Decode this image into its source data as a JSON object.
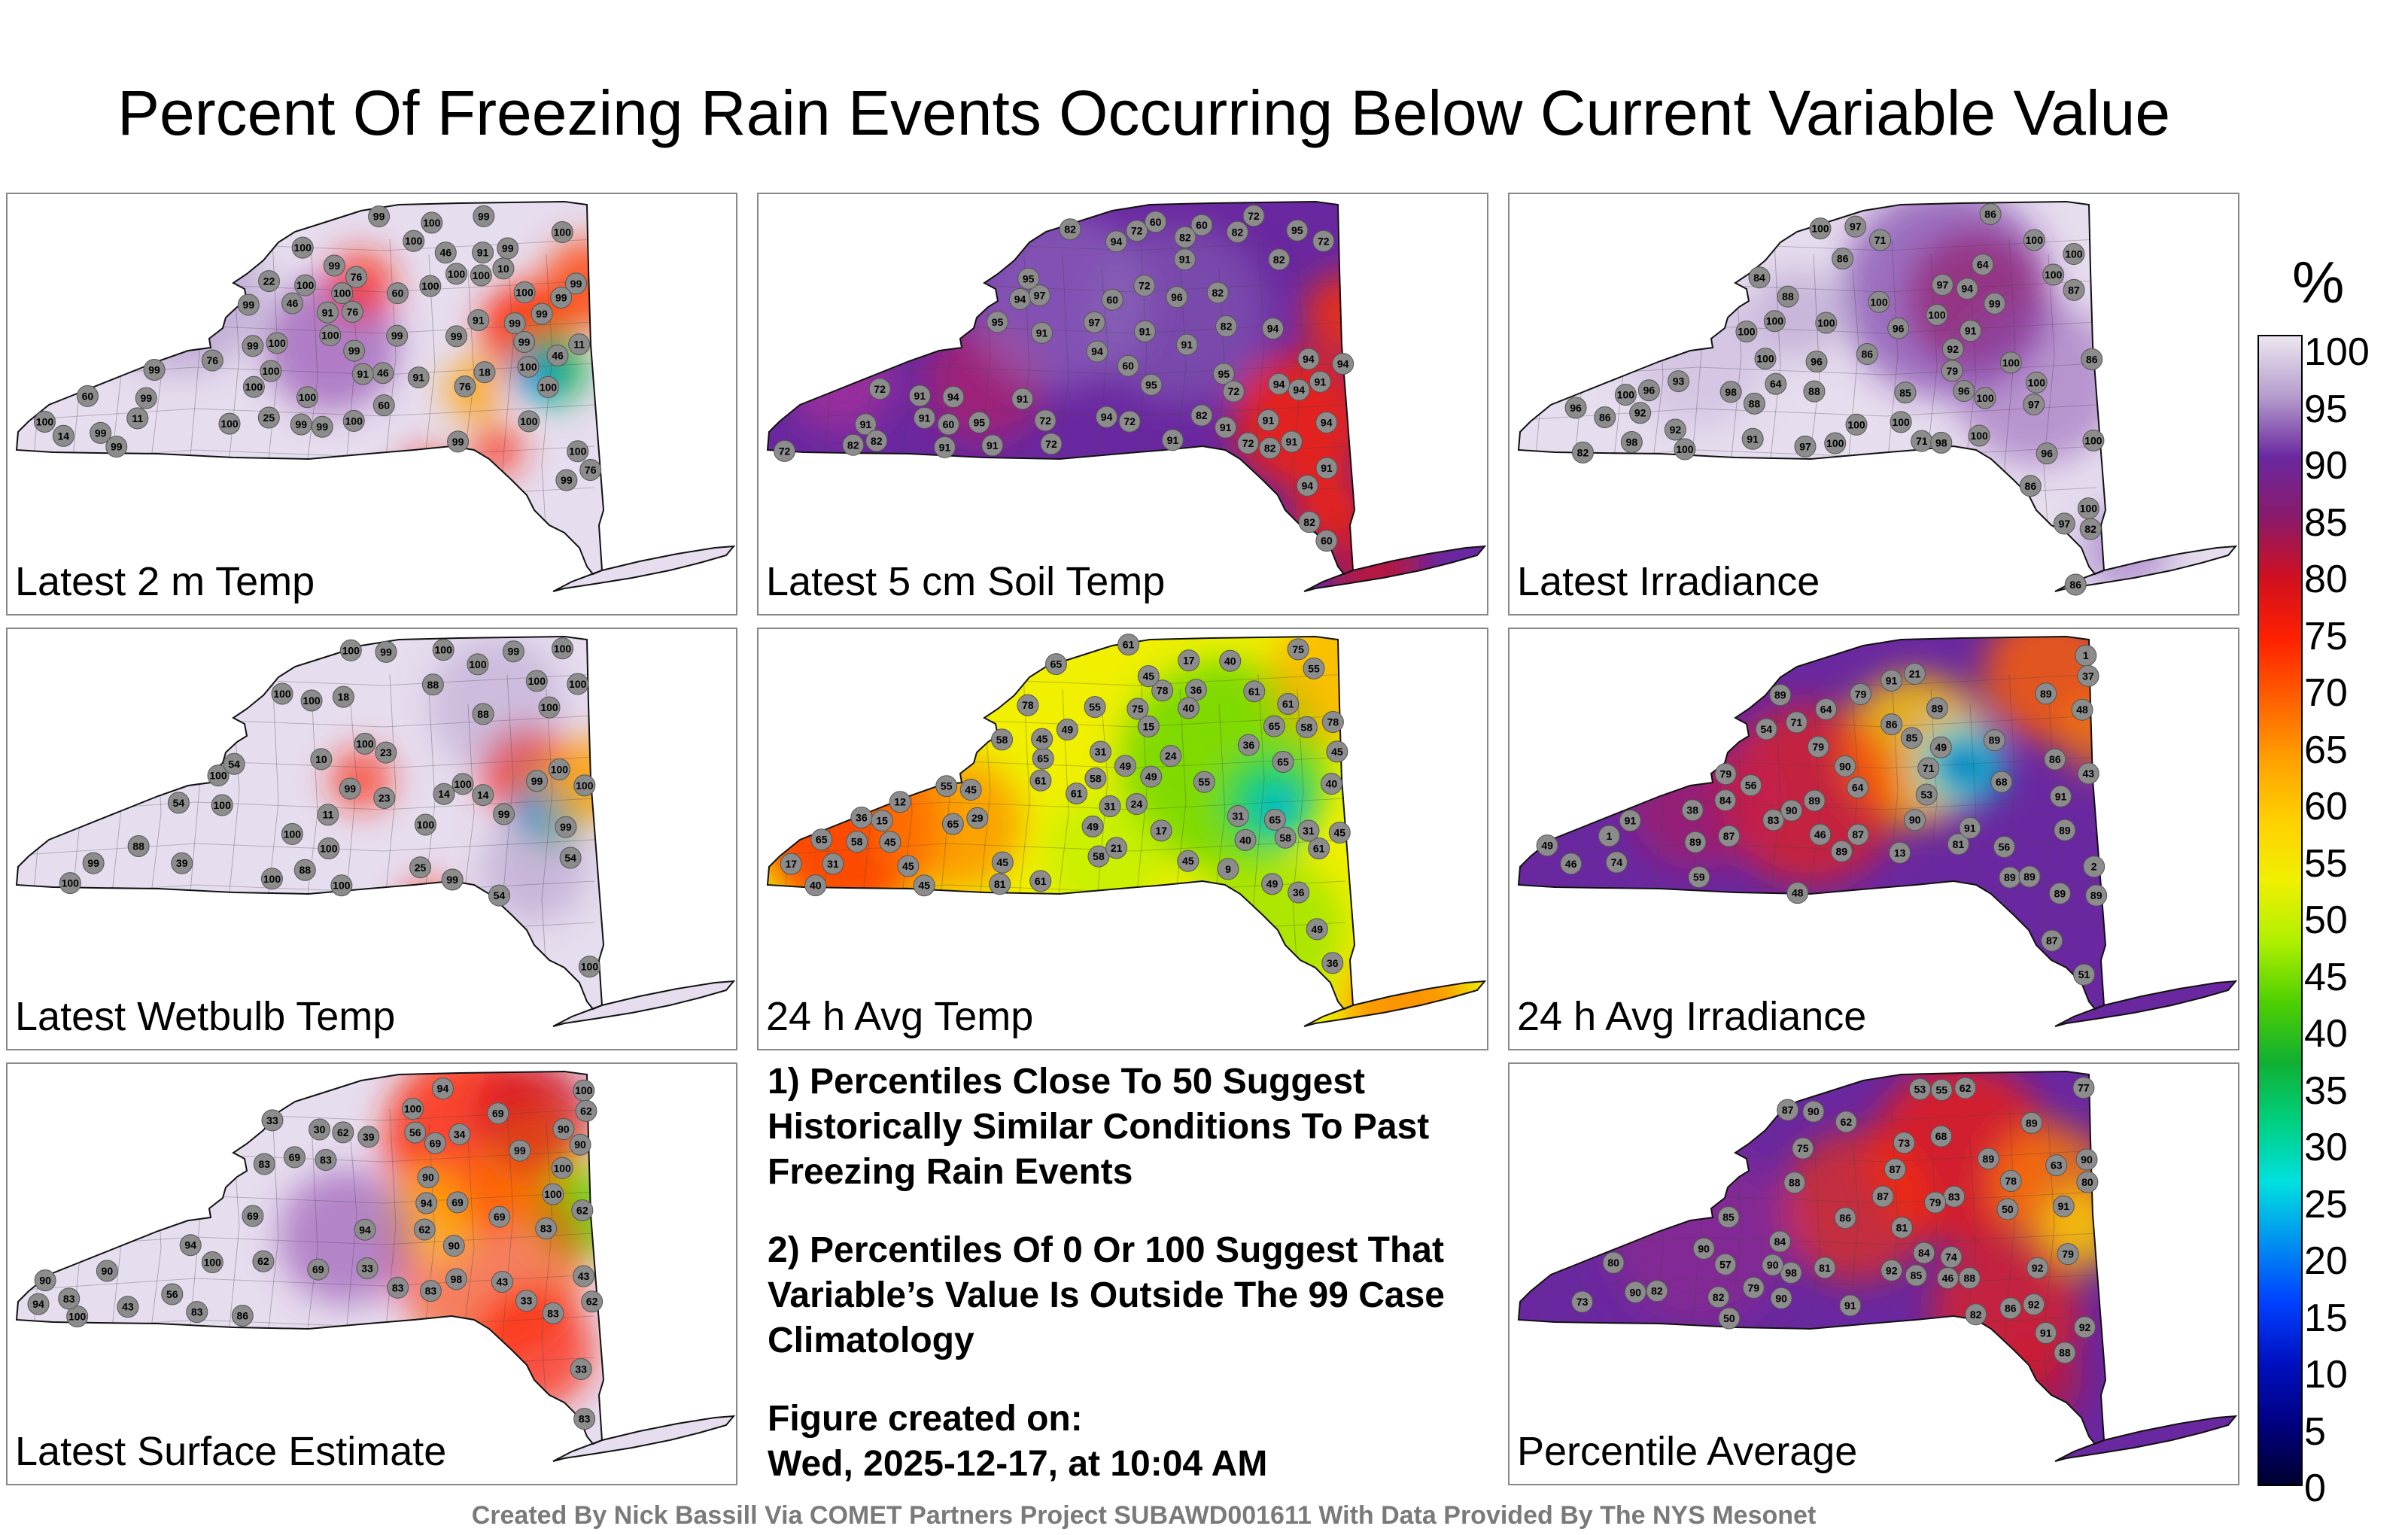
{
  "title": "Percent Of Freezing Rain Events Occurring Below Current Variable Value",
  "panels": [
    {
      "label": "Latest 2 m Temp",
      "scheme": "temp2m",
      "values": [
        99,
        100,
        99,
        76,
        99,
        22,
        46,
        100,
        100,
        99,
        91,
        99,
        11,
        76,
        25,
        18,
        100,
        100,
        100,
        100,
        91,
        46,
        60,
        14,
        46,
        100,
        99,
        100,
        100,
        100,
        99,
        99,
        100,
        76,
        100,
        99,
        10,
        91,
        100,
        100,
        99,
        99,
        99,
        46,
        11,
        100,
        100,
        99,
        99,
        100,
        99,
        91,
        76,
        60,
        99,
        100,
        60,
        99,
        91,
        100,
        99,
        99,
        76,
        99,
        99,
        99,
        100,
        100
      ]
    },
    {
      "label": "Latest 5 cm Soil Temp",
      "scheme": "soil",
      "values": [
        82,
        91,
        91,
        94,
        72,
        94,
        97,
        72,
        91,
        94,
        82,
        97,
        94,
        72,
        94,
        91,
        95,
        72,
        82,
        94,
        95,
        96,
        60,
        60,
        91,
        72,
        82,
        91,
        94,
        72,
        60,
        91,
        72,
        82,
        95,
        91,
        94,
        82,
        91,
        91,
        94,
        91,
        91,
        60,
        72,
        82,
        82,
        82,
        60,
        60,
        72,
        95,
        94,
        82,
        72,
        91,
        91,
        95,
        91,
        95,
        82,
        91,
        72,
        94,
        94
      ]
    },
    {
      "label": "Latest Irradiance",
      "scheme": "irr",
      "values": [
        82,
        86,
        86,
        71,
        82,
        79,
        100,
        86,
        96,
        64,
        86,
        92,
        100,
        71,
        64,
        97,
        93,
        100,
        100,
        100,
        91,
        100,
        100,
        86,
        98,
        97,
        92,
        88,
        86,
        88,
        86,
        100,
        87,
        84,
        100,
        96,
        94,
        97,
        100,
        100,
        100,
        100,
        96,
        91,
        85,
        100,
        97,
        98,
        88,
        98,
        100,
        96,
        96,
        100,
        92,
        97,
        100,
        100,
        100,
        99,
        96,
        100,
        100
      ]
    },
    {
      "label": "Latest Wetbulb Temp",
      "scheme": "wetbulb",
      "values": [
        100,
        100,
        100,
        88,
        100,
        54,
        100,
        99,
        10,
        23,
        99,
        54,
        18,
        100,
        54,
        25,
        99,
        39,
        100,
        100,
        100,
        14,
        14,
        23,
        88,
        100,
        99,
        100,
        100,
        100,
        99,
        11,
        100,
        100,
        100,
        99,
        88,
        54,
        88,
        99,
        100,
        100,
        100,
        100,
        100,
        100,
        99
      ]
    },
    {
      "label": "24 h Avg Temp",
      "scheme": "avgtemp",
      "values": [
        61,
        58,
        58,
        65,
        49,
        31,
        55,
        75,
        61,
        36,
        40,
        45,
        49,
        17,
        31,
        49,
        61,
        24,
        29,
        17,
        45,
        81,
        78,
        75,
        61,
        24,
        36,
        40,
        78,
        65,
        58,
        55,
        45,
        45,
        36,
        9,
        31,
        21,
        78,
        65,
        49,
        55,
        65,
        49,
        36,
        45,
        40,
        12,
        61,
        65,
        49,
        45,
        31,
        40,
        15,
        58,
        61,
        65,
        55,
        45,
        36,
        17,
        45,
        31,
        15,
        45,
        58,
        45,
        40,
        65,
        58,
        61
      ]
    },
    {
      "label": "24 h Avg Irradiance",
      "scheme": "avgirr",
      "values": [
        48,
        64,
        79,
        79,
        46,
        53,
        56,
        21,
        48,
        43,
        13,
        38,
        46,
        2,
        86,
        1,
        1,
        37,
        54,
        64,
        49,
        68,
        71,
        56,
        59,
        71,
        89,
        81,
        83,
        51,
        49,
        74,
        89,
        79,
        85,
        89,
        87,
        89,
        89,
        84,
        87,
        89,
        89,
        86,
        90,
        89,
        87,
        89,
        91,
        89,
        91,
        89,
        91,
        90,
        91,
        90,
        89
      ]
    },
    {
      "label": "Latest Surface Estimate",
      "scheme": "surface",
      "values": [
        83,
        69,
        43,
        94,
        83,
        62,
        39,
        56,
        62,
        33,
        86,
        30,
        69,
        34,
        43,
        33,
        56,
        33,
        99,
        83,
        90,
        94,
        83,
        33,
        100,
        100,
        94,
        90,
        69,
        83,
        62,
        100,
        90,
        83,
        62,
        43,
        100,
        90,
        83,
        94,
        69,
        62,
        100,
        100,
        90,
        62,
        83,
        69,
        94,
        83,
        69,
        69,
        98,
        90
      ]
    },
    {
      "label": "Percentile Average",
      "scheme": "avg",
      "values": [
        79,
        83,
        84,
        62,
        82,
        75,
        68,
        79,
        62,
        88,
        87,
        73,
        80,
        53,
        46,
        63,
        87,
        91,
        89,
        90,
        81,
        98,
        50,
        55,
        92,
        90,
        84,
        85,
        86,
        87,
        57,
        91,
        92,
        89,
        88,
        85,
        86,
        50,
        90,
        91,
        92,
        81,
        77,
        80,
        74,
        90,
        78,
        88,
        82,
        82,
        73,
        79,
        90,
        92,
        90
      ]
    }
  ],
  "notes": {
    "note1": "1) Percentiles Close To 50 Suggest Historically Similar Conditions To Past Freezing Rain Events",
    "note2": "2) Percentiles Of 0 Or 100 Suggest That Variable’s Value Is Outside The 99 Case Climatology",
    "created_label": "Figure created on:",
    "created_date": "Wed, 2025-12-17, at 10:04 AM"
  },
  "credit": "Created By Nick Bassill Via COMET Partners Project SUBAWD001611 With Data Provided By The NYS Mesonet",
  "colorbar": {
    "title": "%",
    "ticks": [
      "100",
      "95",
      "90",
      "85",
      "80",
      "75",
      "70",
      "65",
      "60",
      "55",
      "50",
      "45",
      "40",
      "35",
      "30",
      "25",
      "20",
      "15",
      "10",
      "5",
      "0"
    ],
    "stops": [
      "#ece6f0",
      "#b49ccd",
      "#6a28a0",
      "#8a1a6a",
      "#d01020",
      "#ff2000",
      "#ff6000",
      "#ffa000",
      "#ffd000",
      "#f0f000",
      "#b0f000",
      "#50d000",
      "#10b030",
      "#00d080",
      "#00e0e0",
      "#0090f0",
      "#0040ff",
      "#0010c0",
      "#000080",
      "#000030"
    ]
  }
}
